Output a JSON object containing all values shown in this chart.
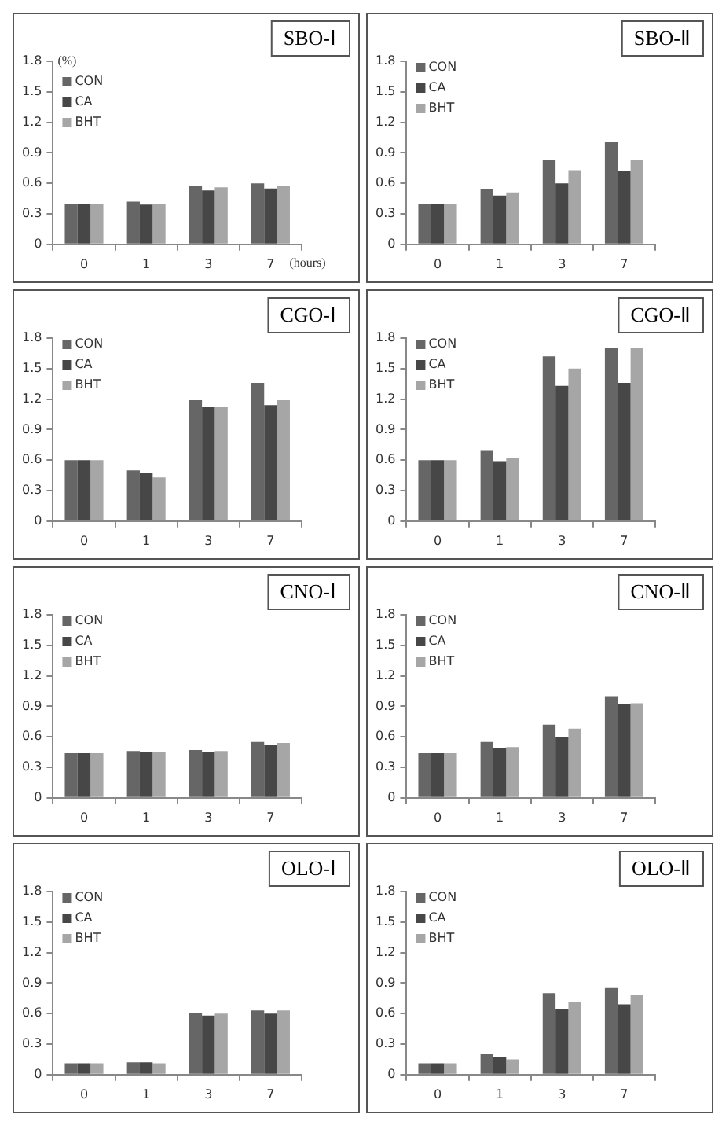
{
  "chart_data": [
    {
      "type": "bar",
      "title": "SBO-Ⅰ",
      "ylabel": "(%)",
      "xlabel": "(hours)",
      "categories": [
        "0",
        "1",
        "3",
        "7"
      ],
      "ylim": [
        0,
        1.8
      ],
      "yticks": [
        0,
        0.3,
        0.6,
        0.9,
        1.2,
        1.5,
        1.8
      ],
      "grid": false,
      "legend": "top left",
      "series": [
        {
          "name": "CON",
          "color": "#666666",
          "values": [
            0.4,
            0.42,
            0.57,
            0.6
          ]
        },
        {
          "name": "CA",
          "color": "#474747",
          "values": [
            0.4,
            0.39,
            0.53,
            0.55
          ]
        },
        {
          "name": "BHT",
          "color": "#a6a6a6",
          "values": [
            0.4,
            0.4,
            0.56,
            0.57
          ]
        }
      ]
    },
    {
      "type": "bar",
      "title": "SBO-Ⅱ",
      "categories": [
        "0",
        "1",
        "3",
        "7"
      ],
      "ylim": [
        0,
        1.8
      ],
      "yticks": [
        0,
        0.3,
        0.6,
        0.9,
        1.2,
        1.5,
        1.8
      ],
      "grid": false,
      "legend": "top left",
      "series": [
        {
          "name": "CON",
          "color": "#666666",
          "values": [
            0.4,
            0.54,
            0.83,
            1.01
          ]
        },
        {
          "name": "CA",
          "color": "#474747",
          "values": [
            0.4,
            0.48,
            0.6,
            0.72
          ]
        },
        {
          "name": "BHT",
          "color": "#a6a6a6",
          "values": [
            0.4,
            0.51,
            0.73,
            0.83
          ]
        }
      ]
    },
    {
      "type": "bar",
      "title": "CGO-Ⅰ",
      "categories": [
        "0",
        "1",
        "3",
        "7"
      ],
      "ylim": [
        0,
        1.8
      ],
      "yticks": [
        0,
        0.3,
        0.6,
        0.9,
        1.2,
        1.5,
        1.8
      ],
      "grid": false,
      "legend": "top left",
      "series": [
        {
          "name": "CON",
          "color": "#666666",
          "values": [
            0.6,
            0.5,
            1.19,
            1.36
          ]
        },
        {
          "name": "CA",
          "color": "#474747",
          "values": [
            0.6,
            0.47,
            1.12,
            1.14
          ]
        },
        {
          "name": "BHT",
          "color": "#a6a6a6",
          "values": [
            0.6,
            0.43,
            1.12,
            1.19
          ]
        }
      ]
    },
    {
      "type": "bar",
      "title": "CGO-Ⅱ",
      "categories": [
        "0",
        "1",
        "3",
        "7"
      ],
      "ylim": [
        0,
        1.8
      ],
      "yticks": [
        0,
        0.3,
        0.6,
        0.9,
        1.2,
        1.5,
        1.8
      ],
      "grid": false,
      "legend": "top left",
      "series": [
        {
          "name": "CON",
          "color": "#666666",
          "values": [
            0.6,
            0.69,
            1.62,
            1.7
          ]
        },
        {
          "name": "CA",
          "color": "#474747",
          "values": [
            0.6,
            0.59,
            1.33,
            1.36
          ]
        },
        {
          "name": "BHT",
          "color": "#a6a6a6",
          "values": [
            0.6,
            0.62,
            1.5,
            1.7
          ]
        }
      ]
    },
    {
      "type": "bar",
      "title": "CNO-Ⅰ",
      "categories": [
        "0",
        "1",
        "3",
        "7"
      ],
      "ylim": [
        0,
        1.8
      ],
      "yticks": [
        0,
        0.3,
        0.6,
        0.9,
        1.2,
        1.5,
        1.8
      ],
      "grid": false,
      "legend": "top left",
      "series": [
        {
          "name": "CON",
          "color": "#666666",
          "values": [
            0.44,
            0.46,
            0.47,
            0.55
          ]
        },
        {
          "name": "CA",
          "color": "#474747",
          "values": [
            0.44,
            0.45,
            0.45,
            0.52
          ]
        },
        {
          "name": "BHT",
          "color": "#a6a6a6",
          "values": [
            0.44,
            0.45,
            0.46,
            0.54
          ]
        }
      ]
    },
    {
      "type": "bar",
      "title": "CNO-Ⅱ",
      "categories": [
        "0",
        "1",
        "3",
        "7"
      ],
      "ylim": [
        0,
        1.8
      ],
      "yticks": [
        0,
        0.3,
        0.6,
        0.9,
        1.2,
        1.5,
        1.8
      ],
      "grid": false,
      "legend": "top left",
      "series": [
        {
          "name": "CON",
          "color": "#666666",
          "values": [
            0.44,
            0.55,
            0.72,
            1.0
          ]
        },
        {
          "name": "CA",
          "color": "#474747",
          "values": [
            0.44,
            0.49,
            0.6,
            0.92
          ]
        },
        {
          "name": "BHT",
          "color": "#a6a6a6",
          "values": [
            0.44,
            0.5,
            0.68,
            0.93
          ]
        }
      ]
    },
    {
      "type": "bar",
      "title": "OLO-Ⅰ",
      "categories": [
        "0",
        "1",
        "3",
        "7"
      ],
      "ylim": [
        0,
        1.8
      ],
      "yticks": [
        0,
        0.3,
        0.6,
        0.9,
        1.2,
        1.5,
        1.8
      ],
      "grid": false,
      "legend": "top left",
      "series": [
        {
          "name": "CON",
          "color": "#666666",
          "values": [
            0.11,
            0.12,
            0.61,
            0.63
          ]
        },
        {
          "name": "CA",
          "color": "#474747",
          "values": [
            0.11,
            0.12,
            0.58,
            0.6
          ]
        },
        {
          "name": "BHT",
          "color": "#a6a6a6",
          "values": [
            0.11,
            0.11,
            0.6,
            0.63
          ]
        }
      ]
    },
    {
      "type": "bar",
      "title": "OLO-Ⅱ",
      "categories": [
        "0",
        "1",
        "3",
        "7"
      ],
      "ylim": [
        0,
        1.8
      ],
      "yticks": [
        0,
        0.3,
        0.6,
        0.9,
        1.2,
        1.5,
        1.8
      ],
      "grid": false,
      "legend": "top left",
      "series": [
        {
          "name": "CON",
          "color": "#666666",
          "values": [
            0.11,
            0.2,
            0.8,
            0.85
          ]
        },
        {
          "name": "CA",
          "color": "#474747",
          "values": [
            0.11,
            0.17,
            0.64,
            0.69
          ]
        },
        {
          "name": "BHT",
          "color": "#a6a6a6",
          "values": [
            0.11,
            0.15,
            0.71,
            0.78
          ]
        }
      ]
    }
  ]
}
